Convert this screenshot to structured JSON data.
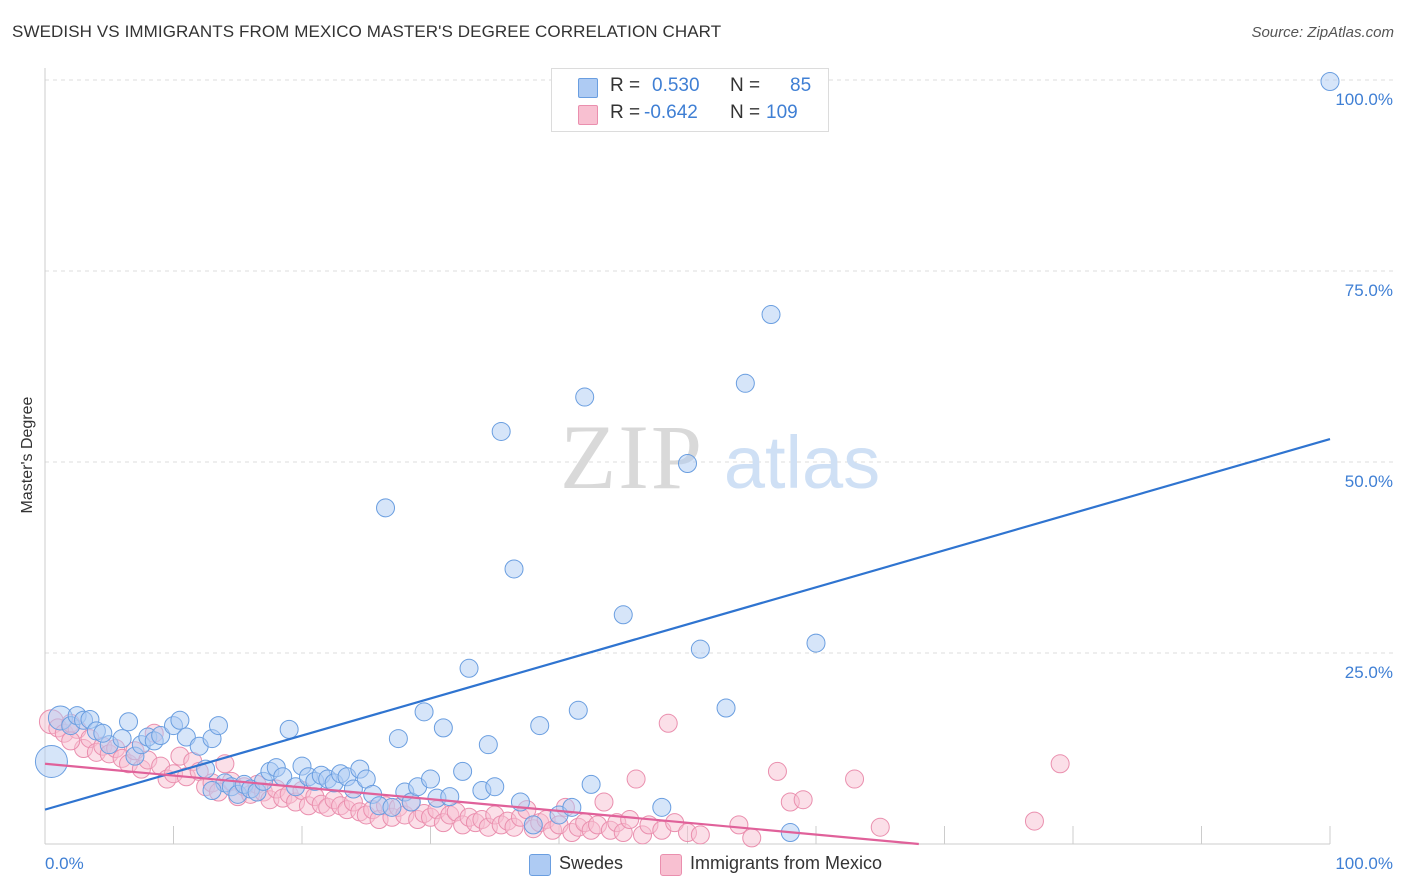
{
  "title": "SWEDISH VS IMMIGRANTS FROM MEXICO MASTER'S DEGREE CORRELATION CHART",
  "source": "Source: ZipAtlas.com",
  "watermark": {
    "zip": "ZIP",
    "atlas": "atlas"
  },
  "legend": {
    "rows": [
      {
        "r_label": "R =",
        "r_value": "0.530",
        "n_label": "N =",
        "n_value": "85",
        "color": "#aecbf3",
        "stroke": "#6a9ee0"
      },
      {
        "r_label": "R =",
        "r_value": "-0.642",
        "n_label": "N =",
        "n_value": "109",
        "color": "#f8c0d1",
        "stroke": "#ea8fae"
      }
    ]
  },
  "bottom_legend": [
    {
      "label": "Swedes",
      "color": "#aecbf3",
      "stroke": "#6a9ee0"
    },
    {
      "label": "Immigrants from Mexico",
      "color": "#f8c0d1",
      "stroke": "#ea8fae"
    }
  ],
  "chart_data": {
    "type": "scatter",
    "title": "SWEDISH VS IMMIGRANTS FROM MEXICO MASTER'S DEGREE CORRELATION CHART",
    "xlabel": "",
    "ylabel": "Master's Degree",
    "xlim": [
      0,
      100
    ],
    "ylim": [
      0,
      100
    ],
    "x_tick_labels": {
      "left": "0.0%",
      "right": "100.0%"
    },
    "y_ticks": [
      {
        "value": 25,
        "label": "25.0%"
      },
      {
        "value": 50,
        "label": "50.0%"
      },
      {
        "value": 75,
        "label": "75.0%"
      },
      {
        "value": 100,
        "label": "100.0%"
      }
    ],
    "grid": true,
    "legend_position": "top-center",
    "series": [
      {
        "name": "Swedes",
        "color": "#6a9ee0",
        "fill": "#aecbf3",
        "trend_color": "#2f74d0",
        "trendline": {
          "x": [
            0,
            100
          ],
          "y": [
            4.5,
            53.0
          ]
        },
        "points": [
          [
            0.5,
            10.8
          ],
          [
            1.2,
            16.5
          ],
          [
            2.0,
            15.5
          ],
          [
            2.5,
            16.8
          ],
          [
            3.0,
            16.2
          ],
          [
            3.5,
            16.3
          ],
          [
            4.0,
            14.8
          ],
          [
            5.0,
            13.0
          ],
          [
            6.0,
            13.8
          ],
          [
            6.5,
            16.0
          ],
          [
            7.0,
            11.5
          ],
          [
            7.5,
            13.0
          ],
          [
            8.0,
            14.0
          ],
          [
            8.5,
            13.5
          ],
          [
            9.0,
            14.2
          ],
          [
            10.0,
            15.5
          ],
          [
            10.5,
            16.2
          ],
          [
            11.0,
            14.0
          ],
          [
            12.0,
            12.8
          ],
          [
            12.5,
            9.8
          ],
          [
            13.0,
            13.8
          ],
          [
            13.5,
            15.5
          ],
          [
            14.0,
            8.0
          ],
          [
            14.5,
            7.5
          ],
          [
            15.0,
            6.5
          ],
          [
            15.5,
            7.8
          ],
          [
            16.0,
            7.2
          ],
          [
            16.5,
            6.8
          ],
          [
            17.0,
            8.2
          ],
          [
            17.5,
            9.5
          ],
          [
            18.0,
            10.0
          ],
          [
            18.5,
            8.8
          ],
          [
            19.0,
            15.0
          ],
          [
            19.5,
            7.5
          ],
          [
            20.0,
            10.2
          ],
          [
            20.5,
            8.8
          ],
          [
            21.0,
            8.2
          ],
          [
            21.5,
            9.0
          ],
          [
            22.0,
            8.5
          ],
          [
            22.5,
            8.0
          ],
          [
            23.0,
            9.2
          ],
          [
            23.5,
            8.8
          ],
          [
            24.0,
            7.2
          ],
          [
            24.5,
            9.8
          ],
          [
            25.0,
            8.5
          ],
          [
            25.5,
            6.5
          ],
          [
            26.0,
            5.0
          ],
          [
            26.5,
            44.0
          ],
          [
            27.0,
            4.8
          ],
          [
            27.5,
            13.8
          ],
          [
            28.0,
            6.8
          ],
          [
            28.5,
            5.5
          ],
          [
            29.0,
            7.5
          ],
          [
            29.5,
            17.3
          ],
          [
            30.0,
            8.5
          ],
          [
            30.5,
            6.0
          ],
          [
            31.0,
            15.2
          ],
          [
            31.5,
            6.2
          ],
          [
            32.5,
            9.5
          ],
          [
            33.0,
            23.0
          ],
          [
            34.0,
            7.0
          ],
          [
            34.5,
            13.0
          ],
          [
            35.0,
            7.5
          ],
          [
            35.5,
            54.0
          ],
          [
            36.5,
            36.0
          ],
          [
            37.0,
            5.5
          ],
          [
            38.0,
            2.5
          ],
          [
            38.5,
            15.5
          ],
          [
            40.0,
            3.8
          ],
          [
            41.0,
            4.8
          ],
          [
            41.5,
            17.5
          ],
          [
            42.0,
            58.5
          ],
          [
            42.5,
            7.8
          ],
          [
            45.0,
            30.0
          ],
          [
            48.0,
            4.8
          ],
          [
            50.0,
            49.8
          ],
          [
            51.0,
            25.5
          ],
          [
            53.0,
            17.8
          ],
          [
            54.5,
            60.3
          ],
          [
            56.5,
            69.3
          ],
          [
            58.0,
            1.5
          ],
          [
            60.0,
            26.3
          ],
          [
            100.0,
            99.8
          ],
          [
            4.5,
            14.5
          ],
          [
            13.0,
            7.0
          ]
        ]
      },
      {
        "name": "Immigrants from Mexico",
        "color": "#ea8fae",
        "fill": "#f8c0d1",
        "trend_color": "#e0619a",
        "trendline": {
          "x": [
            0,
            68
          ],
          "y": [
            10.5,
            0.0
          ]
        },
        "points": [
          [
            0.5,
            16.0
          ],
          [
            1.0,
            15.2
          ],
          [
            1.5,
            14.5
          ],
          [
            2.0,
            15.8
          ],
          [
            2.5,
            15.0
          ],
          [
            3.0,
            12.5
          ],
          [
            3.5,
            13.8
          ],
          [
            4.0,
            12.0
          ],
          [
            4.5,
            12.8
          ],
          [
            5.0,
            11.8
          ],
          [
            5.5,
            12.5
          ],
          [
            6.0,
            11.2
          ],
          [
            6.5,
            10.5
          ],
          [
            7.0,
            12.2
          ],
          [
            7.5,
            9.8
          ],
          [
            8.0,
            11.0
          ],
          [
            8.5,
            14.5
          ],
          [
            9.0,
            10.2
          ],
          [
            9.5,
            8.5
          ],
          [
            10.0,
            9.2
          ],
          [
            10.5,
            11.5
          ],
          [
            11.0,
            8.8
          ],
          [
            11.5,
            10.8
          ],
          [
            12.0,
            9.5
          ],
          [
            12.5,
            7.5
          ],
          [
            13.0,
            8.0
          ],
          [
            13.5,
            6.8
          ],
          [
            14.0,
            10.5
          ],
          [
            14.5,
            8.2
          ],
          [
            15.0,
            6.2
          ],
          [
            15.5,
            7.5
          ],
          [
            16.0,
            6.5
          ],
          [
            16.5,
            7.8
          ],
          [
            17.0,
            6.8
          ],
          [
            17.5,
            5.8
          ],
          [
            18.0,
            7.2
          ],
          [
            18.5,
            6.0
          ],
          [
            19.0,
            6.5
          ],
          [
            19.5,
            5.5
          ],
          [
            20.0,
            7.0
          ],
          [
            20.5,
            5.0
          ],
          [
            21.0,
            6.2
          ],
          [
            21.5,
            5.2
          ],
          [
            22.0,
            4.8
          ],
          [
            22.5,
            5.8
          ],
          [
            23.0,
            5.0
          ],
          [
            23.5,
            4.5
          ],
          [
            24.0,
            5.5
          ],
          [
            24.5,
            4.2
          ],
          [
            25.0,
            3.8
          ],
          [
            25.5,
            4.5
          ],
          [
            26.0,
            3.2
          ],
          [
            26.5,
            5.0
          ],
          [
            27.0,
            3.5
          ],
          [
            27.5,
            4.8
          ],
          [
            28.0,
            3.8
          ],
          [
            28.5,
            5.5
          ],
          [
            29.0,
            3.2
          ],
          [
            29.5,
            4.0
          ],
          [
            30.0,
            3.5
          ],
          [
            30.5,
            4.5
          ],
          [
            31.0,
            2.8
          ],
          [
            31.5,
            3.8
          ],
          [
            32.0,
            4.2
          ],
          [
            32.5,
            2.5
          ],
          [
            33.0,
            3.5
          ],
          [
            33.5,
            2.8
          ],
          [
            34.0,
            3.2
          ],
          [
            34.5,
            2.2
          ],
          [
            35.0,
            3.8
          ],
          [
            35.5,
            2.5
          ],
          [
            36.0,
            3.0
          ],
          [
            36.5,
            2.2
          ],
          [
            37.0,
            3.5
          ],
          [
            37.5,
            4.5
          ],
          [
            38.0,
            2.0
          ],
          [
            38.5,
            2.8
          ],
          [
            39.0,
            3.2
          ],
          [
            39.5,
            1.8
          ],
          [
            40.0,
            2.5
          ],
          [
            40.5,
            4.8
          ],
          [
            41.0,
            1.5
          ],
          [
            41.5,
            2.2
          ],
          [
            42.0,
            2.8
          ],
          [
            42.5,
            1.8
          ],
          [
            43.0,
            2.5
          ],
          [
            43.5,
            5.5
          ],
          [
            44.0,
            1.8
          ],
          [
            44.5,
            2.8
          ],
          [
            45.0,
            1.5
          ],
          [
            45.5,
            3.2
          ],
          [
            46.0,
            8.5
          ],
          [
            46.5,
            1.2
          ],
          [
            47.0,
            2.5
          ],
          [
            48.0,
            1.8
          ],
          [
            48.5,
            15.8
          ],
          [
            49.0,
            2.8
          ],
          [
            50.0,
            1.5
          ],
          [
            51.0,
            1.2
          ],
          [
            54.0,
            2.5
          ],
          [
            55.0,
            0.8
          ],
          [
            57.0,
            9.5
          ],
          [
            58.0,
            5.5
          ],
          [
            59.0,
            5.8
          ],
          [
            63.0,
            8.5
          ],
          [
            65.0,
            2.2
          ],
          [
            77.0,
            3.0
          ],
          [
            79.0,
            10.5
          ],
          [
            2.0,
            13.5
          ]
        ]
      }
    ]
  }
}
